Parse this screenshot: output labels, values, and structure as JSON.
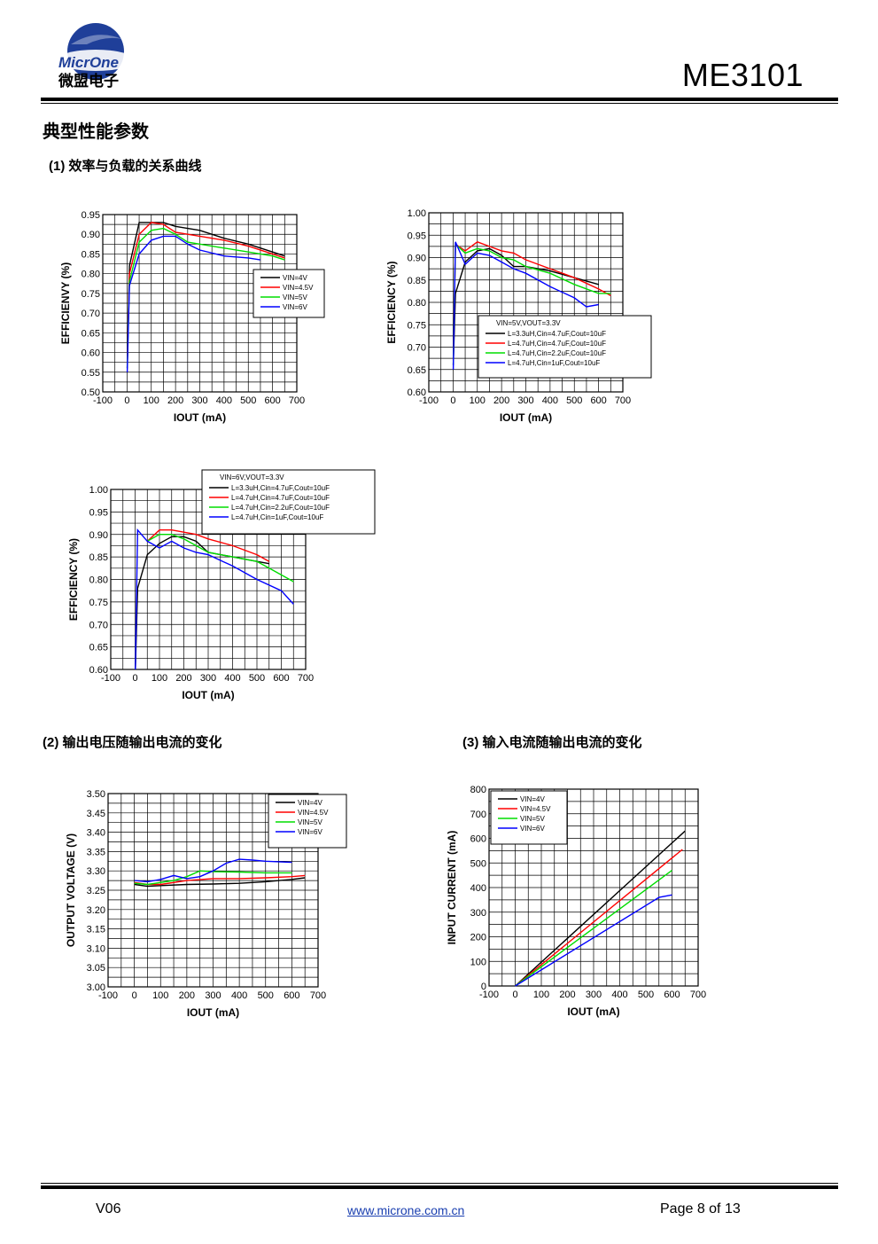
{
  "header": {
    "logo_text_en": "MicrOne",
    "logo_text_cn": "微盟电子",
    "doc_title": "ME3101"
  },
  "section_title": "典型性能参数",
  "subheadings": {
    "s1": "(1)  效率与负载的关系曲线",
    "s2": "(2)  输出电压随输出电流的变化",
    "s3": "(3)  输入电流随输出电流的变化"
  },
  "colors": {
    "black": "#000000",
    "red": "#ff0000",
    "green": "#00dd00",
    "blue": "#0000ff"
  },
  "chart_data": [
    {
      "id": "c1",
      "type": "line",
      "xlabel": "IOUT (mA)",
      "ylabel": "EFFICIENVY (%)",
      "xlim": [
        -100,
        700
      ],
      "ylim": [
        0.5,
        0.95
      ],
      "xticks": [
        -100,
        0,
        100,
        200,
        300,
        400,
        500,
        600,
        700
      ],
      "yticks": [
        0.5,
        0.55,
        0.6,
        0.65,
        0.7,
        0.75,
        0.8,
        0.85,
        0.9,
        0.95
      ],
      "ytick_decimals": 2,
      "x_minor": 50,
      "y_minor": 0.025,
      "legend": {
        "placement": "right-middle",
        "header": ""
      },
      "series": [
        {
          "name": "VIN=4V",
          "color": "#000000",
          "x": [
            1,
            10,
            50,
            100,
            150,
            200,
            250,
            300,
            400,
            500,
            600,
            650
          ],
          "y": [
            0.56,
            0.82,
            0.93,
            0.93,
            0.93,
            0.92,
            0.915,
            0.91,
            0.89,
            0.875,
            0.855,
            0.845
          ]
        },
        {
          "name": "VIN=4.5V",
          "color": "#ff0000",
          "x": [
            1,
            10,
            50,
            100,
            150,
            200,
            250,
            300,
            400,
            500,
            600,
            650
          ],
          "y": [
            0.57,
            0.8,
            0.9,
            0.93,
            0.925,
            0.905,
            0.9,
            0.895,
            0.885,
            0.87,
            0.85,
            0.84
          ]
        },
        {
          "name": "VIN=5V",
          "color": "#00dd00",
          "x": [
            1,
            10,
            50,
            100,
            150,
            200,
            250,
            300,
            400,
            500,
            600,
            650
          ],
          "y": [
            0.56,
            0.78,
            0.88,
            0.91,
            0.915,
            0.9,
            0.88,
            0.875,
            0.865,
            0.855,
            0.845,
            0.835
          ]
        },
        {
          "name": "VIN=6V",
          "color": "#0000ff",
          "x": [
            1,
            10,
            50,
            100,
            150,
            200,
            250,
            300,
            400,
            500,
            550
          ],
          "y": [
            0.55,
            0.77,
            0.85,
            0.885,
            0.895,
            0.895,
            0.875,
            0.86,
            0.845,
            0.84,
            0.835
          ]
        }
      ]
    },
    {
      "id": "c2",
      "type": "line",
      "xlabel": "IOUT (mA)",
      "ylabel": "EFFICIENCY (%)",
      "xlim": [
        -100,
        700
      ],
      "ylim": [
        0.6,
        1.0
      ],
      "xticks": [
        -100,
        0,
        100,
        200,
        300,
        400,
        500,
        600,
        700
      ],
      "yticks": [
        0.6,
        0.65,
        0.7,
        0.75,
        0.8,
        0.85,
        0.9,
        0.95,
        1.0
      ],
      "ytick_decimals": 2,
      "x_minor": 50,
      "y_minor": 0.025,
      "legend": {
        "placement": "bottom-right",
        "header": "VIN=5V,VOUT=3.3V"
      },
      "series": [
        {
          "name": "L=3.3uH,Cin=4.7uF,Cout=10uF",
          "color": "#000000",
          "x": [
            1,
            10,
            50,
            100,
            150,
            200,
            250,
            300,
            400,
            500,
            600
          ],
          "y": [
            0.66,
            0.82,
            0.89,
            0.915,
            0.92,
            0.905,
            0.88,
            0.88,
            0.87,
            0.855,
            0.84
          ]
        },
        {
          "name": "L=4.7uH,Cin=4.7uF,Cout=10uF",
          "color": "#ff0000",
          "x": [
            1,
            10,
            50,
            100,
            150,
            200,
            250,
            300,
            400,
            500,
            600,
            650
          ],
          "y": [
            0.67,
            0.93,
            0.915,
            0.935,
            0.925,
            0.915,
            0.91,
            0.895,
            0.875,
            0.855,
            0.83,
            0.815
          ]
        },
        {
          "name": "L=4.7uH,Cin=2.2uF,Cout=10uF",
          "color": "#00dd00",
          "x": [
            1,
            10,
            50,
            100,
            150,
            200,
            250,
            300,
            400,
            500,
            600,
            650
          ],
          "y": [
            0.66,
            0.93,
            0.91,
            0.92,
            0.915,
            0.9,
            0.895,
            0.88,
            0.865,
            0.84,
            0.82,
            0.82
          ]
        },
        {
          "name": "L=4.7uH,Cin=1uF,Cout=10uF",
          "color": "#0000ff",
          "x": [
            1,
            10,
            50,
            100,
            150,
            200,
            250,
            300,
            400,
            500,
            550,
            600
          ],
          "y": [
            0.65,
            0.935,
            0.885,
            0.91,
            0.905,
            0.89,
            0.875,
            0.865,
            0.835,
            0.81,
            0.79,
            0.795
          ]
        }
      ]
    },
    {
      "id": "c3",
      "type": "line",
      "xlabel": "IOUT (mA)",
      "ylabel": "EFFICIENCY (%)",
      "xlim": [
        -100,
        700
      ],
      "ylim": [
        0.6,
        1.0
      ],
      "xticks": [
        -100,
        0,
        100,
        200,
        300,
        400,
        500,
        600,
        700
      ],
      "yticks": [
        0.6,
        0.65,
        0.7,
        0.75,
        0.8,
        0.85,
        0.9,
        0.95,
        1.0
      ],
      "ytick_decimals": 2,
      "x_minor": 50,
      "y_minor": 0.025,
      "legend": {
        "placement": "top-right-outside",
        "header": "VIN=6V,VOUT=3.3V"
      },
      "series": [
        {
          "name": "L=3.3uH,Cin=4.7uF,Cout=10uF",
          "color": "#000000",
          "x": [
            1,
            10,
            50,
            100,
            150,
            200,
            250,
            300,
            400,
            500,
            550
          ],
          "y": [
            0.6,
            0.78,
            0.855,
            0.88,
            0.895,
            0.895,
            0.885,
            0.86,
            0.85,
            0.84,
            0.835
          ]
        },
        {
          "name": "L=4.7uH,Cin=4.7uF,Cout=10uF",
          "color": "#ff0000",
          "x": [
            50,
            100,
            150,
            200,
            250,
            300,
            400,
            500,
            550
          ],
          "y": [
            0.885,
            0.91,
            0.91,
            0.905,
            0.9,
            0.89,
            0.875,
            0.855,
            0.84
          ]
        },
        {
          "name": "L=4.7uH,Cin=2.2uF,Cout=10uF",
          "color": "#00dd00",
          "x": [
            50,
            100,
            150,
            200,
            250,
            300,
            400,
            500,
            550,
            650
          ],
          "y": [
            0.885,
            0.9,
            0.9,
            0.89,
            0.875,
            0.86,
            0.85,
            0.84,
            0.825,
            0.795
          ]
        },
        {
          "name": "L=4.7uH,Cin=1uF,Cout=10uF",
          "color": "#0000ff",
          "x": [
            1,
            10,
            50,
            100,
            150,
            200,
            250,
            300,
            400,
            500,
            600,
            650
          ],
          "y": [
            0.6,
            0.91,
            0.885,
            0.87,
            0.885,
            0.87,
            0.86,
            0.855,
            0.83,
            0.8,
            0.775,
            0.745
          ]
        }
      ]
    },
    {
      "id": "c4",
      "type": "line",
      "xlabel": "IOUT (mA)",
      "ylabel": "OUTPUT VOLTAGE (V)",
      "xlim": [
        -100,
        700
      ],
      "ylim": [
        3.0,
        3.5
      ],
      "xticks": [
        -100,
        0,
        100,
        200,
        300,
        400,
        500,
        600,
        700
      ],
      "yticks": [
        3.0,
        3.05,
        3.1,
        3.15,
        3.2,
        3.25,
        3.3,
        3.35,
        3.4,
        3.45,
        3.5
      ],
      "ytick_decimals": 2,
      "x_minor": 50,
      "y_minor": 0.025,
      "legend": {
        "placement": "top-right",
        "header": ""
      },
      "series": [
        {
          "name": "VIN=4V",
          "color": "#000000",
          "x": [
            1,
            50,
            100,
            200,
            300,
            400,
            500,
            600,
            650
          ],
          "y": [
            3.265,
            3.26,
            3.262,
            3.265,
            3.266,
            3.268,
            3.272,
            3.278,
            3.282
          ]
        },
        {
          "name": "VIN=4.5V",
          "color": "#ff0000",
          "x": [
            1,
            50,
            100,
            200,
            300,
            400,
            500,
            600,
            650
          ],
          "y": [
            3.27,
            3.265,
            3.265,
            3.275,
            3.28,
            3.28,
            3.282,
            3.285,
            3.288
          ]
        },
        {
          "name": "VIN=5V",
          "color": "#00dd00",
          "x": [
            1,
            50,
            100,
            150,
            200,
            250,
            300,
            400,
            500,
            600
          ],
          "y": [
            3.268,
            3.265,
            3.27,
            3.275,
            3.285,
            3.3,
            3.298,
            3.297,
            3.295,
            3.295
          ]
        },
        {
          "name": "VIN=6V",
          "color": "#0000ff",
          "x": [
            1,
            50,
            100,
            150,
            200,
            250,
            300,
            350,
            400,
            450,
            500,
            600
          ],
          "y": [
            3.275,
            3.272,
            3.278,
            3.288,
            3.28,
            3.285,
            3.3,
            3.32,
            3.33,
            3.328,
            3.325,
            3.322
          ]
        }
      ]
    },
    {
      "id": "c5",
      "type": "line",
      "xlabel": "IOUT (mA)",
      "ylabel": "INPUT CURRENT (mA)",
      "xlim": [
        -100,
        700
      ],
      "ylim": [
        0,
        800
      ],
      "xticks": [
        -100,
        0,
        100,
        200,
        300,
        400,
        500,
        600,
        700
      ],
      "yticks": [
        0,
        100,
        200,
        300,
        400,
        500,
        600,
        700,
        800
      ],
      "ytick_decimals": 0,
      "x_minor": 50,
      "y_minor": 50,
      "legend": {
        "placement": "top-left",
        "header": ""
      },
      "series": [
        {
          "name": "VIN=4V",
          "color": "#000000",
          "x": [
            0,
            650
          ],
          "y": [
            0,
            630
          ]
        },
        {
          "name": "VIN=4.5V",
          "color": "#ff0000",
          "x": [
            0,
            640
          ],
          "y": [
            0,
            555
          ]
        },
        {
          "name": "VIN=5V",
          "color": "#00dd00",
          "x": [
            0,
            600
          ],
          "y": [
            0,
            470
          ]
        },
        {
          "name": "VIN=6V",
          "color": "#0000ff",
          "x": [
            0,
            550,
            600
          ],
          "y": [
            0,
            360,
            370
          ]
        }
      ]
    }
  ],
  "footer": {
    "version": "V06",
    "url": "www.microne.com.cn",
    "page": "Page 8 of 13"
  }
}
